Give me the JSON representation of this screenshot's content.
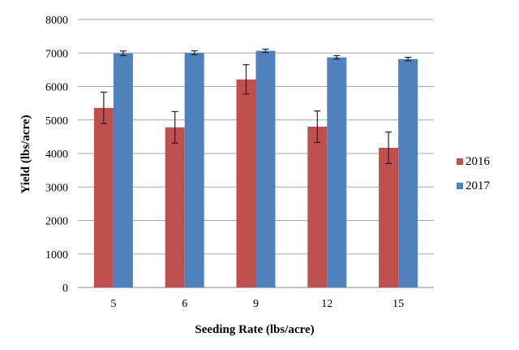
{
  "chart_data": {
    "type": "bar",
    "title": "",
    "xlabel": "Seeding Rate (lbs/acre)",
    "ylabel": "Yield (lbs/acre)",
    "categories": [
      "5",
      "6",
      "9",
      "12",
      "15"
    ],
    "ylim": [
      0,
      8000
    ],
    "yticks": [
      0,
      1000,
      2000,
      3000,
      4000,
      5000,
      6000,
      7000,
      8000
    ],
    "grid": true,
    "legend": "right",
    "series": [
      {
        "name": "2016",
        "color": "#c0504d",
        "values": [
          5360,
          4780,
          6210,
          4800,
          4170
        ],
        "errors": [
          470,
          470,
          440,
          470,
          470
        ]
      },
      {
        "name": "2017",
        "color": "#4f81bd",
        "values": [
          6990,
          7005,
          7065,
          6870,
          6820
        ],
        "errors": [
          70,
          60,
          50,
          50,
          50
        ]
      }
    ]
  }
}
